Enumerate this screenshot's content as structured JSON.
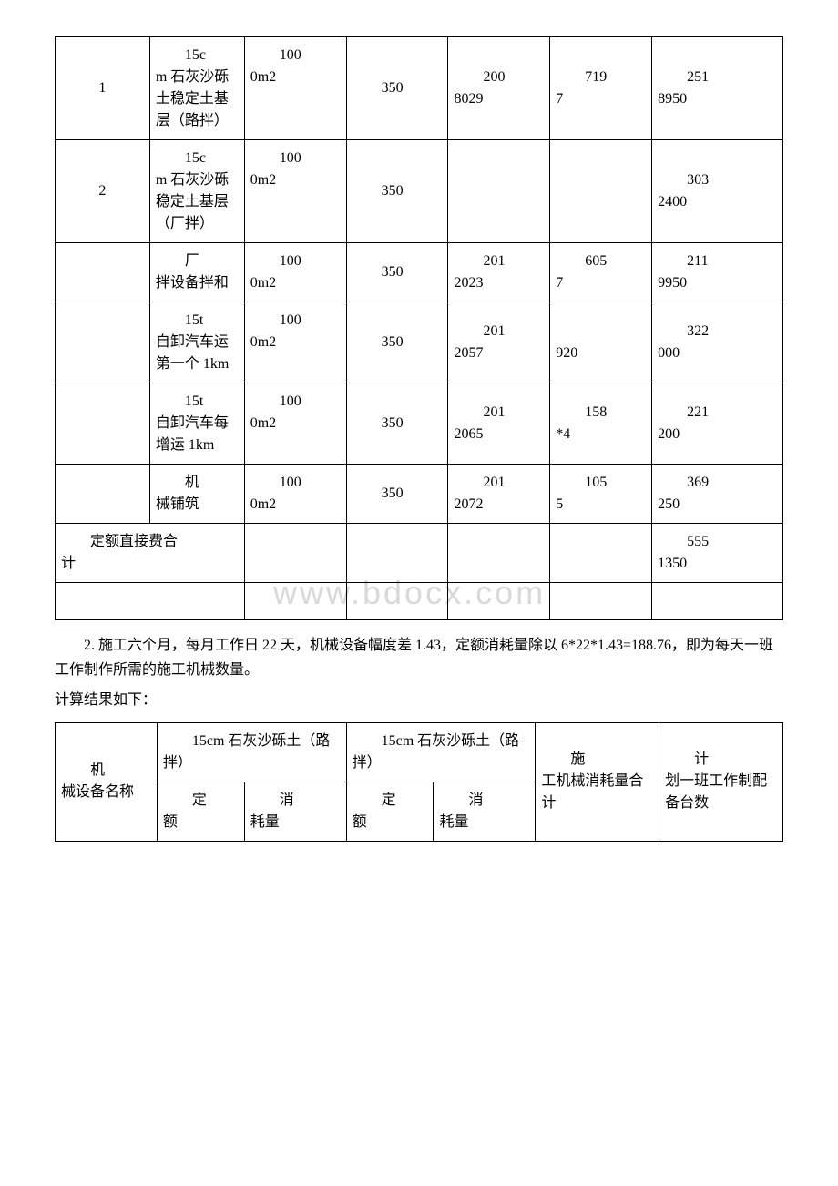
{
  "watermark": "www.bdocx.com",
  "table1": {
    "rows": [
      {
        "c1": "1",
        "c2a": "15c",
        "c2b": "m 石灰沙砾土稳定土基层（路拌）",
        "c3a": "100",
        "c3b": "0m2",
        "c4": "350",
        "c5a": "200",
        "c5b": "8029",
        "c6a": "719",
        "c6b": "7",
        "c7a": "251",
        "c7b": "8950"
      },
      {
        "c1": "2",
        "c2a": "15c",
        "c2b": "m 石灰沙砾稳定土基层（厂拌）",
        "c3a": "100",
        "c3b": "0m2",
        "c4": "350",
        "c5a": "",
        "c5b": "",
        "c6a": "",
        "c6b": "",
        "c7a": "303",
        "c7b": "2400"
      },
      {
        "c1": "",
        "c2a": "厂",
        "c2b": "拌设备拌和",
        "c3a": "100",
        "c3b": "0m2",
        "c4": "350",
        "c5a": "201",
        "c5b": "2023",
        "c6a": "605",
        "c6b": "7",
        "c7a": "211",
        "c7b": "9950"
      },
      {
        "c1": "",
        "c2a": "15t",
        "c2b": "自卸汽车运第一个 1km",
        "c3a": "100",
        "c3b": "0m2",
        "c4": "350",
        "c5a": "201",
        "c5b": "2057",
        "c6a": "",
        "c6b": "920",
        "c7a": "322",
        "c7b": "000"
      },
      {
        "c1": "",
        "c2a": "15t",
        "c2b": "自卸汽车每增运 1km",
        "c3a": "100",
        "c3b": "0m2",
        "c4": "350",
        "c5a": "201",
        "c5b": "2065",
        "c6a": "158",
        "c6b": "*4",
        "c7a": "221",
        "c7b": "200"
      },
      {
        "c1": "",
        "c2a": "机",
        "c2b": "械铺筑",
        "c3a": "100",
        "c3b": "0m2",
        "c4": "350",
        "c5a": "201",
        "c5b": "2072",
        "c6a": "105",
        "c6b": "5",
        "c7a": "369",
        "c7b": "250"
      }
    ],
    "sum_label": "定额直接费合计",
    "sum_c7a": "555",
    "sum_c7b": "1350"
  },
  "paragraph1": "2. 施工六个月，每月工作日 22 天，机械设备幅度差 1.43，定额消耗量除以 6*22*1.43=188.76，即为每天一班工作制作所需的施工机械数量。",
  "paragraph2": "计算结果如下：",
  "table2": {
    "h_machine": "机械设备名称",
    "h_group1": "15cm 石灰沙砾土（路拌）",
    "h_group2": "15cm 石灰沙砾土（路拌）",
    "h_total": "施工机械消耗量合计",
    "h_plan": "计划一班工作制配备台数",
    "h_quota": "定额",
    "h_consume": "消耗量"
  }
}
